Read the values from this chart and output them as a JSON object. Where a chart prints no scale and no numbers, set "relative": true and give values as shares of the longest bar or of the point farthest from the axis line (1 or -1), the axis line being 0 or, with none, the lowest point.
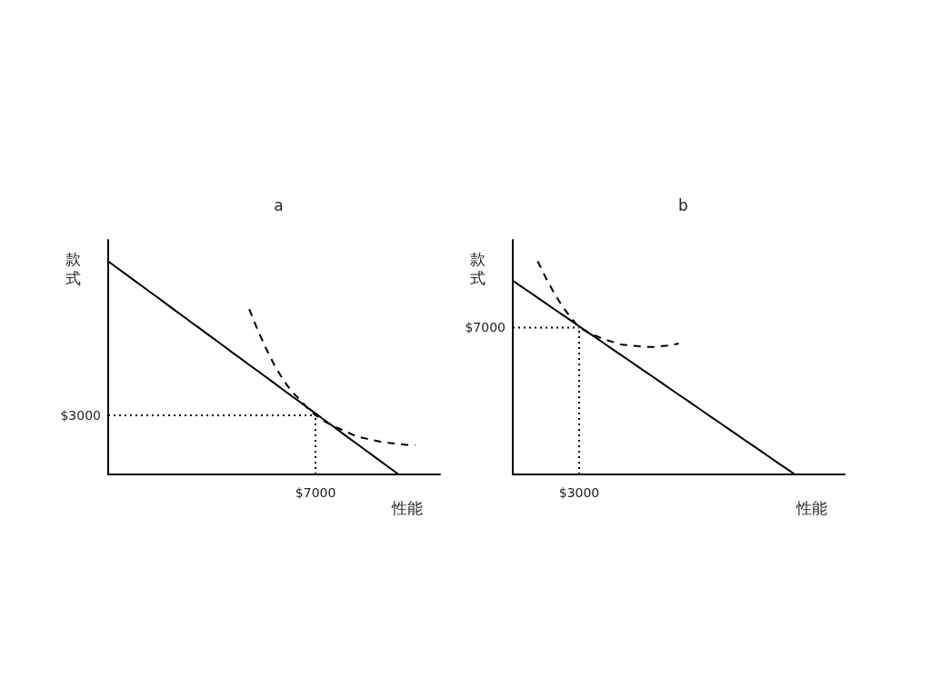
{
  "chart_data": [
    {
      "type": "line",
      "title": "a",
      "xlabel": "性能",
      "ylabel": "款式",
      "relative": true,
      "marker": "none",
      "annotations": [
        "$3000",
        "$7000"
      ],
      "categories": [
        null,
        null,
        null,
        null,
        null,
        null,
        null,
        null,
        null,
        null,
        null,
        null,
        null,
        null,
        null,
        null,
        null,
        null,
        null,
        null,
        null,
        null,
        null,
        null,
        null,
        null,
        null,
        null,
        null,
        null,
        null,
        null,
        null,
        null,
        null,
        null,
        null,
        null,
        null,
        null,
        null
      ],
      "series": [
        {
          "color": "#000000",
          "line_style": "solid",
          "values": [
            1,
            0.971,
            0.943,
            0.914,
            0.886,
            0.857,
            0.829,
            0.8,
            0.771,
            0.743,
            0.714,
            0.686,
            0.657,
            0.629,
            0.6,
            0.571,
            0.543,
            0.514,
            0.486,
            0.457,
            0.429,
            0.4,
            0.371,
            0.343,
            0.314,
            0.286,
            0.257,
            0.229,
            0.2,
            0.171,
            0.143,
            0.114,
            0.086,
            0.057,
            0.029,
            0,
            null,
            null,
            null,
            null,
            null
          ]
        },
        {
          "color": "#000000",
          "line_style": "dashed",
          "values": [
            null,
            null,
            null,
            null,
            null,
            null,
            null,
            null,
            null,
            null,
            null,
            null,
            null,
            null,
            null,
            null,
            null,
            0.775,
            0.68,
            0.593,
            0.515,
            0.45,
            0.394,
            0.355,
            0.312,
            0.277,
            0.251,
            0.229,
            0.212,
            0.195,
            0.177,
            0.169,
            0.16,
            0.152,
            0.147,
            0.143,
            0.139,
            0.139,
            null,
            null,
            null
          ]
        },
        {
          "color": "#000000",
          "line_style": "dotted",
          "values": [
            0.277,
            0.277,
            0.277,
            0.277,
            0.277,
            0.277,
            0.277,
            0.277,
            0.277,
            0.277,
            0.277,
            0.277,
            0.277,
            0.277,
            0.277,
            0.277,
            0.277,
            0.277,
            0.277,
            0.277,
            0.277,
            0.277,
            0.277,
            0.277,
            0.277,
            0.277,
            null,
            null,
            null,
            null,
            null,
            null,
            null,
            null,
            null,
            null,
            null,
            null,
            null,
            null,
            null
          ]
        }
      ]
    },
    {
      "type": "line",
      "title": "b",
      "xlabel": "性能",
      "ylabel": "款式",
      "relative": true,
      "marker": "none",
      "annotations": [
        "$7000",
        "$3000"
      ],
      "categories": [
        null,
        null,
        null,
        null,
        null,
        null,
        null,
        null,
        null,
        null,
        null,
        null,
        null,
        null,
        null,
        null,
        null,
        null,
        null,
        null,
        null,
        null,
        null,
        null,
        null,
        null,
        null,
        null,
        null,
        null,
        null,
        null,
        null,
        null,
        null,
        null,
        null,
        null,
        null,
        null,
        null
      ],
      "series": [
        {
          "color": "#000000",
          "line_style": "solid",
          "values": [
            0.909,
            0.882,
            0.856,
            0.829,
            0.802,
            0.775,
            0.749,
            0.722,
            0.695,
            0.668,
            0.642,
            0.615,
            0.588,
            0.561,
            0.535,
            0.508,
            0.481,
            0.455,
            0.428,
            0.401,
            0.374,
            0.348,
            0.321,
            0.294,
            0.267,
            0.241,
            0.214,
            0.187,
            0.16,
            0.134,
            0.107,
            0.08,
            0.053,
            0.027,
            0,
            null,
            null,
            null,
            null,
            null,
            null
          ]
        },
        {
          "color": "#000000",
          "line_style": "dashed",
          "values": [
            null,
            null,
            null,
            1,
            0.921,
            0.85,
            0.787,
            0.736,
            0.689,
            0.669,
            0.65,
            0.634,
            0.622,
            0.61,
            0.606,
            0.602,
            0.598,
            0.598,
            0.602,
            0.606,
            0.614,
            null,
            null,
            null,
            null,
            null,
            null,
            null,
            null,
            null,
            null,
            null,
            null,
            null,
            null,
            null,
            null,
            null,
            null,
            null,
            null
          ]
        },
        {
          "color": "#000000",
          "line_style": "dotted",
          "values": [
            0.689,
            0.689,
            0.689,
            0.689,
            0.689,
            0.689,
            0.689,
            0.689,
            0.689,
            null,
            null,
            null,
            null,
            null,
            null,
            null,
            null,
            null,
            null,
            null,
            null,
            null,
            null,
            null,
            null,
            null,
            null,
            null,
            null,
            null,
            null,
            null,
            null,
            null,
            null,
            null,
            null,
            null,
            null,
            null,
            null
          ]
        }
      ]
    }
  ]
}
